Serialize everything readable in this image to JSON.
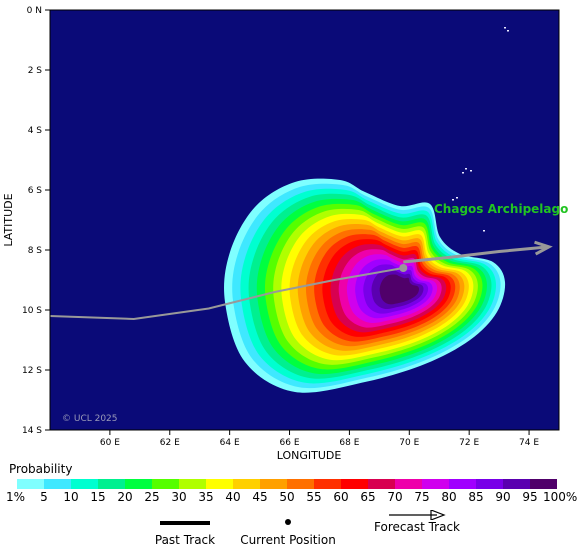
{
  "map": {
    "lat_labels": [
      "0 N",
      "2 S",
      "4 S",
      "6 S",
      "8 S",
      "10 S",
      "12 S",
      "14 S"
    ],
    "lon_labels": [
      "60 E",
      "62 E",
      "64 E",
      "66 E",
      "68 E",
      "70 E",
      "72 E",
      "74 E"
    ],
    "ylabel": "LATITUDE",
    "xlabel": "LONGITUDE",
    "copyright": "© UCL 2025",
    "place_label": "Chagos Archipelago",
    "lat_range": [
      0,
      -14
    ],
    "lon_range": [
      58,
      75
    ],
    "ocean_color": "#0a0a78",
    "past_track": [
      [
        58.0,
        -10.2
      ],
      [
        60.8,
        -10.3
      ],
      [
        63.3,
        -9.95
      ],
      [
        65.5,
        -9.4
      ],
      [
        67.5,
        -9.0
      ],
      [
        69.8,
        -8.6
      ]
    ],
    "current_position": [
      69.8,
      -8.6
    ],
    "forecast_track": [
      [
        69.8,
        -8.4
      ],
      [
        71.3,
        -8.25
      ],
      [
        73.0,
        -8.05
      ],
      [
        74.6,
        -7.9
      ]
    ],
    "track_color": "#999999"
  },
  "legend": {
    "title": "Probability",
    "labels": [
      "1%",
      "5",
      "10",
      "15",
      "20",
      "25",
      "30",
      "35",
      "40",
      "45",
      "50",
      "55",
      "60",
      "65",
      "70",
      "75",
      "80",
      "85",
      "90",
      "95",
      "100%"
    ],
    "colors": [
      "#7fffff",
      "#3fe8ff",
      "#00ffd0",
      "#00f090",
      "#00ff40",
      "#55ff00",
      "#b0ff00",
      "#ffff00",
      "#ffd000",
      "#ffa000",
      "#ff7000",
      "#ff3000",
      "#ff0000",
      "#d80050",
      "#ee00aa",
      "#d000ee",
      "#a000ff",
      "#7800e8",
      "#5a00b0",
      "#50006a"
    ]
  },
  "key": {
    "past_track": "Past Track",
    "current_position": "Current Position",
    "forecast_track": "Forecast Track"
  }
}
